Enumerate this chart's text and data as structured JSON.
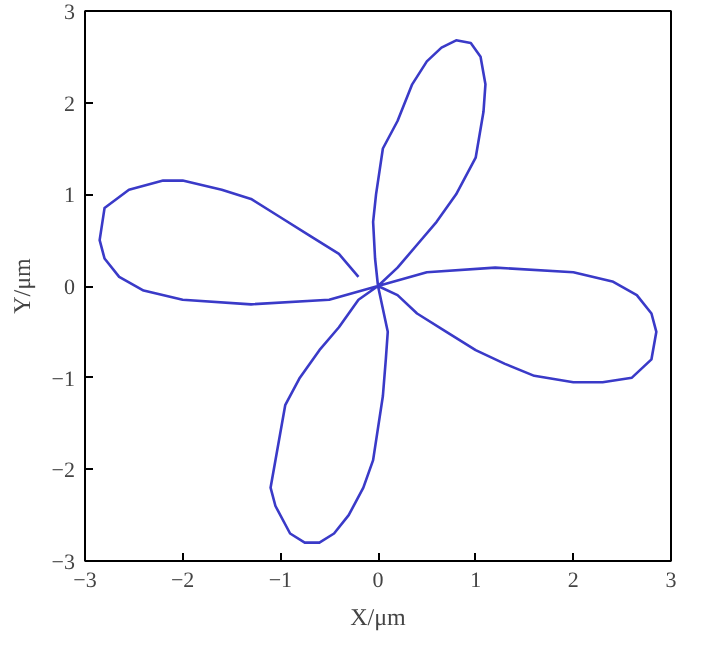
{
  "chart_data": {
    "type": "line",
    "xlabel": "X/μm",
    "ylabel": "Y/μm",
    "xlim": [
      -3,
      3
    ],
    "ylim": [
      -3,
      3
    ],
    "xticks": [
      -3,
      -2,
      -1,
      0,
      1,
      2,
      3
    ],
    "yticks": [
      -3,
      -2,
      -1,
      0,
      1,
      2,
      3
    ],
    "grid": false,
    "line_style": "solid",
    "series": [
      {
        "color": "#3a3ac8",
        "x": [
          0,
          -0.03,
          -0.05,
          -0.02,
          0.05,
          0.2,
          0.35,
          0.5,
          0.65,
          0.8,
          0.95,
          1.05,
          1.1,
          1.08,
          1.0,
          0.8,
          0.6,
          0.4,
          0.2,
          0,
          0.5,
          1.2,
          2.0,
          2.4,
          2.65,
          2.8,
          2.85,
          2.8,
          2.6,
          2.3,
          2.0,
          1.6,
          1.3,
          1.0,
          0.7,
          0.4,
          0.2,
          0,
          0.1,
          0.08,
          0.05,
          -0.05,
          -0.15,
          -0.3,
          -0.45,
          -0.6,
          -0.75,
          -0.9,
          -1.05,
          -1.1,
          -1.05,
          -0.95,
          -0.8,
          -0.6,
          -0.4,
          -0.2,
          0,
          -0.5,
          -1.3,
          -2.0,
          -2.4,
          -2.65,
          -2.8,
          -2.85,
          -2.8,
          -2.55,
          -2.2,
          -2.0,
          -1.6,
          -1.3,
          -1.0,
          -0.7,
          -0.4,
          -0.2
        ],
        "values": [
          0,
          0.3,
          0.7,
          1.0,
          1.5,
          1.8,
          2.2,
          2.45,
          2.6,
          2.68,
          2.65,
          2.5,
          2.2,
          1.9,
          1.4,
          1.0,
          0.7,
          0.45,
          0.2,
          0,
          0.15,
          0.2,
          0.15,
          0.05,
          -0.1,
          -0.3,
          -0.5,
          -0.8,
          -1.0,
          -1.05,
          -1.05,
          -0.98,
          -0.85,
          -0.7,
          -0.5,
          -0.3,
          -0.1,
          0,
          -0.5,
          -0.8,
          -1.2,
          -1.9,
          -2.2,
          -2.5,
          -2.7,
          -2.8,
          -2.8,
          -2.7,
          -2.4,
          -2.2,
          -1.9,
          -1.3,
          -1.0,
          -0.7,
          -0.45,
          -0.15,
          0,
          -0.15,
          -0.2,
          -0.15,
          -0.05,
          0.1,
          0.3,
          0.5,
          0.85,
          1.05,
          1.15,
          1.15,
          1.05,
          0.95,
          0.75,
          0.55,
          0.35,
          0.1
        ]
      }
    ]
  }
}
